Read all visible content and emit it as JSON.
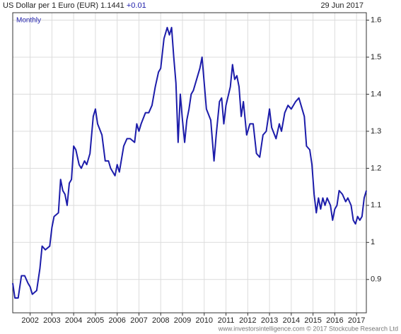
{
  "chart_data": {
    "type": "line",
    "title": "US Dollar per 1 Euro (EUR)",
    "last": "1.1441",
    "change": "+0.01",
    "date": "29 Jun 2017",
    "period_label": "Monthly",
    "footer": "www.investorsintelligence.com © 2017 Stockcube Research Ltd",
    "x": [
      2001.2,
      2001.3,
      2001.45,
      2001.6,
      2001.75,
      2001.9,
      2002.0,
      2002.1,
      2002.3,
      2002.45,
      2002.55,
      2002.7,
      2002.9,
      2003.0,
      2003.1,
      2003.3,
      2003.4,
      2003.5,
      2003.6,
      2003.7,
      2003.8,
      2003.9,
      2004.0,
      2004.1,
      2004.25,
      2004.35,
      2004.5,
      2004.6,
      2004.75,
      2004.9,
      2005.0,
      2005.1,
      2005.3,
      2005.45,
      2005.6,
      2005.7,
      2005.9,
      2006.0,
      2006.1,
      2006.3,
      2006.45,
      2006.6,
      2006.8,
      2006.9,
      2007.0,
      2007.1,
      2007.3,
      2007.45,
      2007.6,
      2007.75,
      2007.9,
      2008.0,
      2008.15,
      2008.3,
      2008.4,
      2008.5,
      2008.6,
      2008.7,
      2008.8,
      2008.9,
      2009.0,
      2009.1,
      2009.2,
      2009.3,
      2009.4,
      2009.5,
      2009.6,
      2009.8,
      2009.9,
      2010.0,
      2010.1,
      2010.3,
      2010.45,
      2010.55,
      2010.7,
      2010.8,
      2010.9,
      2011.0,
      2011.2,
      2011.3,
      2011.4,
      2011.5,
      2011.6,
      2011.7,
      2011.8,
      2011.95,
      2012.1,
      2012.25,
      2012.4,
      2012.55,
      2012.7,
      2012.85,
      2013.0,
      2013.1,
      2013.3,
      2013.45,
      2013.55,
      2013.7,
      2013.85,
      2014.0,
      2014.2,
      2014.35,
      2014.5,
      2014.6,
      2014.7,
      2014.85,
      2014.95,
      2015.05,
      2015.15,
      2015.25,
      2015.35,
      2015.45,
      2015.55,
      2015.65,
      2015.8,
      2015.9,
      2016.0,
      2016.1,
      2016.2,
      2016.35,
      2016.5,
      2016.6,
      2016.75,
      2016.85,
      2016.95,
      2017.05,
      2017.15,
      2017.25,
      2017.35,
      2017.45
    ],
    "series": [
      {
        "name": "EUR",
        "color": "#1c1caa",
        "values": [
          0.89,
          0.85,
          0.85,
          0.91,
          0.91,
          0.89,
          0.88,
          0.86,
          0.87,
          0.93,
          0.99,
          0.98,
          0.99,
          1.04,
          1.07,
          1.08,
          1.17,
          1.14,
          1.13,
          1.1,
          1.16,
          1.17,
          1.26,
          1.25,
          1.21,
          1.2,
          1.22,
          1.21,
          1.24,
          1.34,
          1.36,
          1.32,
          1.29,
          1.22,
          1.22,
          1.2,
          1.18,
          1.21,
          1.19,
          1.26,
          1.28,
          1.28,
          1.27,
          1.32,
          1.3,
          1.32,
          1.35,
          1.35,
          1.37,
          1.42,
          1.46,
          1.47,
          1.55,
          1.58,
          1.56,
          1.58,
          1.5,
          1.43,
          1.27,
          1.4,
          1.33,
          1.27,
          1.33,
          1.36,
          1.4,
          1.41,
          1.43,
          1.47,
          1.5,
          1.43,
          1.36,
          1.33,
          1.22,
          1.29,
          1.38,
          1.39,
          1.32,
          1.37,
          1.42,
          1.48,
          1.44,
          1.45,
          1.42,
          1.34,
          1.38,
          1.29,
          1.32,
          1.32,
          1.24,
          1.23,
          1.29,
          1.3,
          1.36,
          1.31,
          1.28,
          1.32,
          1.3,
          1.35,
          1.37,
          1.36,
          1.38,
          1.39,
          1.36,
          1.34,
          1.26,
          1.25,
          1.21,
          1.13,
          1.08,
          1.12,
          1.09,
          1.12,
          1.1,
          1.12,
          1.1,
          1.06,
          1.09,
          1.1,
          1.14,
          1.13,
          1.11,
          1.12,
          1.1,
          1.06,
          1.05,
          1.07,
          1.06,
          1.07,
          1.12,
          1.14
        ]
      }
    ],
    "xlim": [
      2001.2,
      2017.45
    ],
    "xticks": [
      2002,
      2003,
      2004,
      2005,
      2006,
      2007,
      2008,
      2009,
      2010,
      2011,
      2012,
      2013,
      2014,
      2015,
      2016,
      2017
    ],
    "ylim": [
      0.81,
      1.62
    ],
    "yticks": [
      0.9,
      1,
      1.1,
      1.2,
      1.3,
      1.4,
      1.5,
      1.6
    ],
    "grid": true
  }
}
